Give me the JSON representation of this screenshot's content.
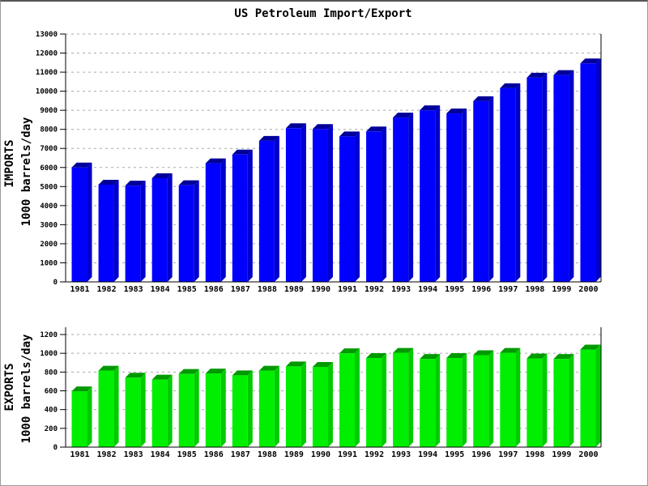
{
  "chart_data": {
    "type": "bar",
    "title": "US Petroleum Import/Export",
    "categories": [
      "1981",
      "1982",
      "1983",
      "1984",
      "1985",
      "1986",
      "1987",
      "1988",
      "1989",
      "1990",
      "1991",
      "1992",
      "1993",
      "1994",
      "1995",
      "1996",
      "1997",
      "1998",
      "1999",
      "2000"
    ],
    "layout": {
      "grid": "horizontal-dashed",
      "legend": "none",
      "bar_style": "3d-beveled"
    },
    "charts": [
      {
        "name": "imports",
        "ylabel_line1": "IMPORTS",
        "ylabel_line2": "1000 barrels/day",
        "ylim": [
          0,
          13000
        ],
        "ytick_step": 1000,
        "colors": {
          "front": "#0000ff",
          "top": "#000099",
          "side": "#0000cc"
        },
        "values": [
          6000,
          5100,
          5050,
          5440,
          5070,
          6220,
          6680,
          7400,
          8060,
          8020,
          7630,
          7890,
          8620,
          9000,
          8835,
          9480,
          10160,
          10710,
          10850,
          11460
        ]
      },
      {
        "name": "exports",
        "ylabel_line1": "EXPORTS",
        "ylabel_line2": "1000 barrels/day",
        "ylim": [
          0,
          1200
        ],
        "ytick_step": 200,
        "colors": {
          "front": "#00ee00",
          "top": "#009900",
          "side": "#00cc00"
        },
        "values": [
          595,
          815,
          740,
          720,
          780,
          785,
          765,
          815,
          860,
          855,
          1000,
          950,
          1005,
          940,
          950,
          980,
          1005,
          945,
          940,
          1040
        ]
      }
    ],
    "style_colors": {
      "grid": "#aaaaaa",
      "axis": "#000000",
      "background": "#ffffff"
    }
  }
}
